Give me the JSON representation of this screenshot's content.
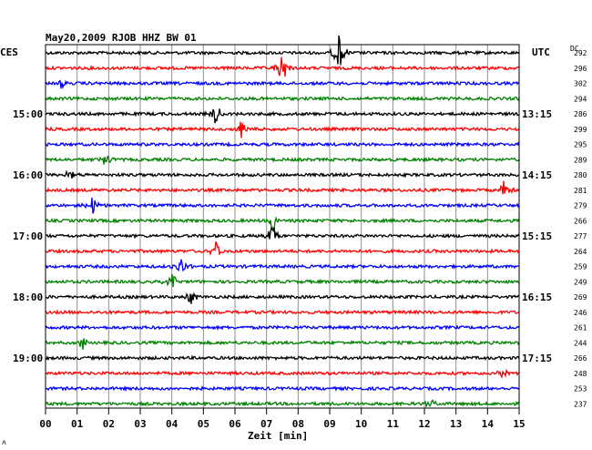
{
  "header": {
    "title": "May20,2009  RJOB HHZ BW 01",
    "left_tz": "CES",
    "right_tz": "UTC",
    "dc_label": "DC",
    "corner_mark": "ʌ"
  },
  "chart_data": {
    "type": "line",
    "title": "May20,2009  RJOB HHZ BW 01",
    "xlabel": "Zeit [min]",
    "xlim": [
      0,
      15
    ],
    "x_ticks": [
      "00",
      "01",
      "02",
      "03",
      "04",
      "05",
      "06",
      "07",
      "08",
      "09",
      "10",
      "11",
      "12",
      "13",
      "14",
      "15"
    ],
    "trace_colors": [
      "#000000",
      "#ff0000",
      "#0000ff",
      "#008000"
    ],
    "left_time_labels": [
      {
        "trace_index": 4,
        "label": "15:00"
      },
      {
        "trace_index": 8,
        "label": "16:00"
      },
      {
        "trace_index": 12,
        "label": "17:00"
      },
      {
        "trace_index": 16,
        "label": "18:00"
      },
      {
        "trace_index": 20,
        "label": "19:00"
      }
    ],
    "right_time_labels": [
      {
        "trace_index": 4,
        "label": "13:15"
      },
      {
        "trace_index": 8,
        "label": "14:15"
      },
      {
        "trace_index": 12,
        "label": "15:15"
      },
      {
        "trace_index": 16,
        "label": "16:15"
      },
      {
        "trace_index": 20,
        "label": "17:15"
      }
    ],
    "dc_offsets": [
      292,
      296,
      302,
      294,
      286,
      299,
      295,
      289,
      280,
      281,
      279,
      266,
      277,
      264,
      259,
      249,
      269,
      246,
      261,
      244,
      266,
      248,
      253,
      237
    ],
    "events": [
      {
        "trace": 0,
        "minute": 9.3,
        "amp": 1.6
      },
      {
        "trace": 1,
        "minute": 7.5,
        "amp": 1.5
      },
      {
        "trace": 2,
        "minute": 0.5,
        "amp": 0.4
      },
      {
        "trace": 4,
        "minute": 5.4,
        "amp": 1.0
      },
      {
        "trace": 5,
        "minute": 6.2,
        "amp": 0.9
      },
      {
        "trace": 7,
        "minute": 1.9,
        "amp": 0.8
      },
      {
        "trace": 8,
        "minute": 0.8,
        "amp": 0.5
      },
      {
        "trace": 9,
        "minute": 14.5,
        "amp": 1.0
      },
      {
        "trace": 10,
        "minute": 1.5,
        "amp": 0.8
      },
      {
        "trace": 11,
        "minute": 7.2,
        "amp": 1.0
      },
      {
        "trace": 12,
        "minute": 7.2,
        "amp": 1.0
      },
      {
        "trace": 13,
        "minute": 5.4,
        "amp": 0.9
      },
      {
        "trace": 14,
        "minute": 4.3,
        "amp": 0.9
      },
      {
        "trace": 15,
        "minute": 4.0,
        "amp": 0.7
      },
      {
        "trace": 16,
        "minute": 4.6,
        "amp": 0.7
      },
      {
        "trace": 19,
        "minute": 1.2,
        "amp": 0.6
      },
      {
        "trace": 21,
        "minute": 14.5,
        "amp": 0.5
      },
      {
        "trace": 23,
        "minute": 12.2,
        "amp": 0.4
      }
    ]
  }
}
